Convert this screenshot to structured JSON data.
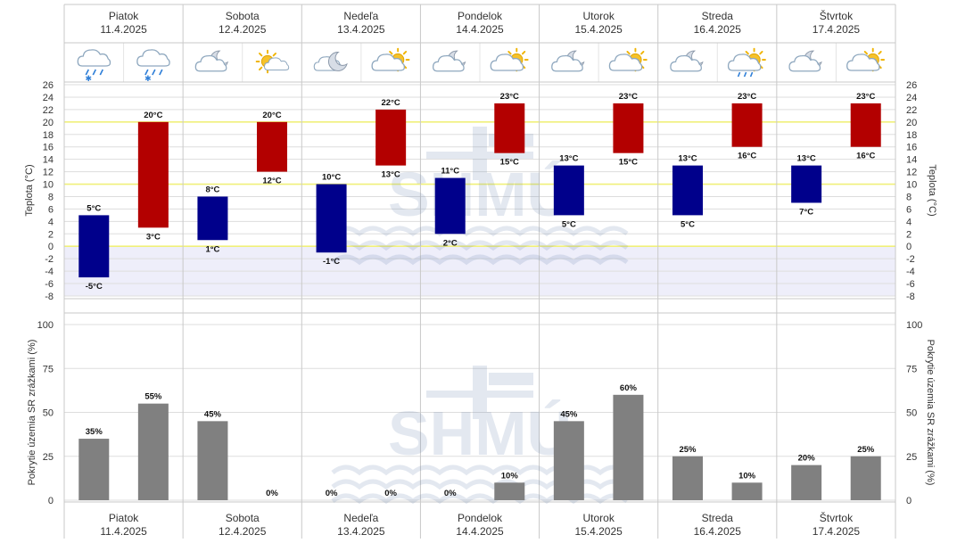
{
  "days": [
    {
      "name": "Piatok",
      "date": "11.4.2025",
      "icons": [
        "cloud-rain-snow-icon",
        "cloud-rain-snow-icon"
      ]
    },
    {
      "name": "Sobota",
      "date": "12.4.2025",
      "icons": [
        "cloud-moon-icon",
        "partly-sunny-icon"
      ]
    },
    {
      "name": "Nedeľa",
      "date": "13.4.2025",
      "icons": [
        "moon-icon",
        "cloud-sun-icon"
      ]
    },
    {
      "name": "Pondelok",
      "date": "14.4.2025",
      "icons": [
        "cloud-moon-icon",
        "cloud-sun-icon"
      ]
    },
    {
      "name": "Utorok",
      "date": "15.4.2025",
      "icons": [
        "cloud-moon-icon",
        "cloud-sun-icon"
      ]
    },
    {
      "name": "Streda",
      "date": "16.4.2025",
      "icons": [
        "cloud-moon-icon",
        "cloud-sun-rain-icon"
      ]
    },
    {
      "name": "Štvrtok",
      "date": "17.4.2025",
      "icons": [
        "cloud-moon-icon",
        "cloud-sun-icon"
      ]
    }
  ],
  "chart_data": [
    {
      "type": "bar",
      "subtype": "floating-range",
      "ylabel": "Teplota (°C)",
      "ylim": [
        -8,
        26
      ],
      "ticks": [
        26,
        24,
        22,
        20,
        18,
        16,
        14,
        12,
        10,
        8,
        6,
        4,
        2,
        0,
        -2,
        -4,
        -6,
        -8
      ],
      "highlight_lines": [
        20,
        10,
        0
      ],
      "unit": "°C",
      "series": [
        {
          "name": "night",
          "color": "#00008b",
          "bars": [
            {
              "day": 0,
              "low": -5,
              "high": 5
            },
            {
              "day": 1,
              "low": 1,
              "high": 8
            },
            {
              "day": 2,
              "low": -1,
              "high": 10
            },
            {
              "day": 3,
              "low": 2,
              "high": 11
            },
            {
              "day": 4,
              "low": 5,
              "high": 13
            },
            {
              "day": 5,
              "low": 5,
              "high": 13
            },
            {
              "day": 6,
              "low": 7,
              "high": 13
            }
          ]
        },
        {
          "name": "day",
          "color": "#b30000",
          "bars": [
            {
              "day": 0,
              "low": 3,
              "high": 20
            },
            {
              "day": 1,
              "low": 12,
              "high": 20
            },
            {
              "day": 2,
              "low": 13,
              "high": 22
            },
            {
              "day": 3,
              "low": 15,
              "high": 23
            },
            {
              "day": 4,
              "low": 15,
              "high": 23
            },
            {
              "day": 5,
              "low": 16,
              "high": 23
            },
            {
              "day": 6,
              "low": 16,
              "high": 23
            }
          ]
        }
      ]
    },
    {
      "type": "bar",
      "ylabel": "Pokrytie územia SR zrážkami (%)",
      "ylim": [
        0,
        100
      ],
      "ticks": [
        100,
        75,
        50,
        25,
        0
      ],
      "unit": "%",
      "color": "#808080",
      "values": [
        [
          35,
          55
        ],
        [
          45,
          0
        ],
        [
          0,
          0
        ],
        [
          0,
          10
        ],
        [
          45,
          60
        ],
        [
          25,
          10
        ],
        [
          20,
          25
        ]
      ]
    }
  ],
  "colors": {
    "night": "#00008b",
    "day": "#b30000",
    "precip": "#808080",
    "grid": "#dddddd",
    "highlight": "#f0f07a",
    "negative_bg": "#eeeefa"
  }
}
